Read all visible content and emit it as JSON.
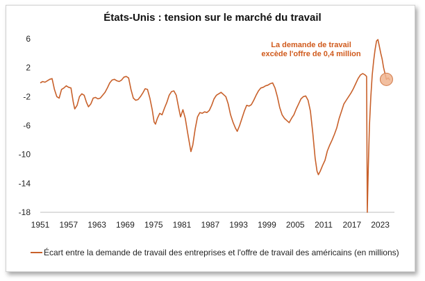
{
  "chart_data": {
    "type": "line",
    "title": "États-Unis : tension sur le marché du travail",
    "xlabel": "",
    "ylabel": "",
    "xlim": [
      1951,
      2026
    ],
    "ylim": [
      -18,
      6
    ],
    "x_ticks": [
      "1951",
      "1957",
      "1963",
      "1969",
      "1975",
      "1981",
      "1987",
      "1993",
      "1999",
      "2005",
      "2011",
      "2017",
      "2023"
    ],
    "y_ticks": [
      "6",
      "2",
      "-2",
      "-6",
      "-10",
      "-14",
      "-18"
    ],
    "grid": false,
    "color": "#c8602a",
    "annotation": [
      "La demande de travail",
      "excède l'offre de 0,4 million"
    ],
    "annotation_point": [
      2024.3,
      0.4
    ],
    "series": [
      {
        "name": "Écart entre la demande de travail des entreprises et l'offre de travail des américains (en millions)",
        "points": [
          [
            1951.0,
            -0.1
          ],
          [
            1951.5,
            0.1
          ],
          [
            1952.0,
            0.0
          ],
          [
            1952.5,
            0.2
          ],
          [
            1953.0,
            0.4
          ],
          [
            1953.5,
            0.5
          ],
          [
            1954.0,
            -1.0
          ],
          [
            1954.5,
            -2.0
          ],
          [
            1955.0,
            -2.2
          ],
          [
            1955.5,
            -1.0
          ],
          [
            1956.0,
            -0.8
          ],
          [
            1956.5,
            -0.5
          ],
          [
            1957.0,
            -0.7
          ],
          [
            1957.5,
            -0.8
          ],
          [
            1958.0,
            -2.8
          ],
          [
            1958.3,
            -3.7
          ],
          [
            1958.8,
            -3.2
          ],
          [
            1959.3,
            -2.0
          ],
          [
            1959.8,
            -1.6
          ],
          [
            1960.3,
            -1.8
          ],
          [
            1960.8,
            -2.8
          ],
          [
            1961.2,
            -3.4
          ],
          [
            1961.7,
            -3.0
          ],
          [
            1962.2,
            -2.2
          ],
          [
            1962.7,
            -2.1
          ],
          [
            1963.2,
            -2.3
          ],
          [
            1963.7,
            -2.2
          ],
          [
            1964.2,
            -1.8
          ],
          [
            1964.7,
            -1.4
          ],
          [
            1965.2,
            -0.8
          ],
          [
            1965.7,
            -0.1
          ],
          [
            1966.2,
            0.3
          ],
          [
            1966.7,
            0.4
          ],
          [
            1967.2,
            0.2
          ],
          [
            1967.7,
            0.1
          ],
          [
            1968.2,
            0.3
          ],
          [
            1968.7,
            0.7
          ],
          [
            1969.2,
            0.8
          ],
          [
            1969.7,
            0.6
          ],
          [
            1970.2,
            -1.0
          ],
          [
            1970.7,
            -2.2
          ],
          [
            1971.2,
            -2.5
          ],
          [
            1971.7,
            -2.4
          ],
          [
            1972.2,
            -2.0
          ],
          [
            1972.7,
            -1.5
          ],
          [
            1973.2,
            -0.9
          ],
          [
            1973.7,
            -1.0
          ],
          [
            1974.2,
            -2.2
          ],
          [
            1974.7,
            -3.8
          ],
          [
            1975.1,
            -5.5
          ],
          [
            1975.4,
            -5.8
          ],
          [
            1975.8,
            -5.0
          ],
          [
            1976.3,
            -4.3
          ],
          [
            1976.8,
            -4.5
          ],
          [
            1977.3,
            -3.6
          ],
          [
            1977.8,
            -2.8
          ],
          [
            1978.3,
            -1.8
          ],
          [
            1978.8,
            -1.3
          ],
          [
            1979.3,
            -1.2
          ],
          [
            1979.8,
            -1.8
          ],
          [
            1980.3,
            -3.5
          ],
          [
            1980.7,
            -4.8
          ],
          [
            1981.2,
            -3.8
          ],
          [
            1981.7,
            -5.0
          ],
          [
            1982.2,
            -7.0
          ],
          [
            1982.6,
            -8.5
          ],
          [
            1982.9,
            -9.6
          ],
          [
            1983.3,
            -8.7
          ],
          [
            1983.8,
            -6.5
          ],
          [
            1984.3,
            -4.8
          ],
          [
            1984.8,
            -4.2
          ],
          [
            1985.3,
            -4.3
          ],
          [
            1985.8,
            -4.1
          ],
          [
            1986.3,
            -4.2
          ],
          [
            1986.8,
            -3.9
          ],
          [
            1987.3,
            -3.2
          ],
          [
            1987.8,
            -2.3
          ],
          [
            1988.3,
            -1.8
          ],
          [
            1988.8,
            -1.6
          ],
          [
            1989.3,
            -1.4
          ],
          [
            1989.8,
            -1.7
          ],
          [
            1990.3,
            -2.0
          ],
          [
            1990.8,
            -3.0
          ],
          [
            1991.3,
            -4.5
          ],
          [
            1991.8,
            -5.5
          ],
          [
            1992.3,
            -6.3
          ],
          [
            1992.7,
            -6.8
          ],
          [
            1993.2,
            -6.0
          ],
          [
            1993.7,
            -5.0
          ],
          [
            1994.2,
            -4.0
          ],
          [
            1994.7,
            -3.2
          ],
          [
            1995.2,
            -3.3
          ],
          [
            1995.7,
            -3.1
          ],
          [
            1996.2,
            -2.5
          ],
          [
            1996.7,
            -1.8
          ],
          [
            1997.2,
            -1.2
          ],
          [
            1997.7,
            -0.8
          ],
          [
            1998.2,
            -0.7
          ],
          [
            1998.7,
            -0.5
          ],
          [
            1999.2,
            -0.4
          ],
          [
            1999.7,
            -0.2
          ],
          [
            2000.2,
            -0.1
          ],
          [
            2000.7,
            -0.8
          ],
          [
            2001.2,
            -2.0
          ],
          [
            2001.7,
            -3.5
          ],
          [
            2002.2,
            -4.5
          ],
          [
            2002.7,
            -5.0
          ],
          [
            2003.2,
            -5.3
          ],
          [
            2003.7,
            -5.6
          ],
          [
            2004.2,
            -5.0
          ],
          [
            2004.7,
            -4.5
          ],
          [
            2005.2,
            -3.7
          ],
          [
            2005.7,
            -3.0
          ],
          [
            2006.2,
            -2.3
          ],
          [
            2006.7,
            -2.0
          ],
          [
            2007.2,
            -1.9
          ],
          [
            2007.7,
            -2.5
          ],
          [
            2008.2,
            -4.0
          ],
          [
            2008.7,
            -7.0
          ],
          [
            2009.2,
            -10.5
          ],
          [
            2009.6,
            -12.3
          ],
          [
            2009.9,
            -12.8
          ],
          [
            2010.3,
            -12.3
          ],
          [
            2010.8,
            -11.5
          ],
          [
            2011.3,
            -10.8
          ],
          [
            2011.8,
            -9.5
          ],
          [
            2012.3,
            -8.7
          ],
          [
            2012.8,
            -8.0
          ],
          [
            2013.3,
            -7.2
          ],
          [
            2013.8,
            -6.3
          ],
          [
            2014.3,
            -5.0
          ],
          [
            2014.8,
            -4.0
          ],
          [
            2015.3,
            -3.0
          ],
          [
            2015.8,
            -2.5
          ],
          [
            2016.3,
            -2.0
          ],
          [
            2016.8,
            -1.5
          ],
          [
            2017.3,
            -0.9
          ],
          [
            2017.8,
            -0.2
          ],
          [
            2018.3,
            0.5
          ],
          [
            2018.8,
            1.0
          ],
          [
            2019.3,
            1.2
          ],
          [
            2019.8,
            1.0
          ],
          [
            2020.1,
            0.8
          ],
          [
            2020.25,
            -18.0
          ],
          [
            2020.45,
            -12.0
          ],
          [
            2020.7,
            -6.0
          ],
          [
            2021.0,
            -2.0
          ],
          [
            2021.3,
            1.0
          ],
          [
            2021.6,
            3.0
          ],
          [
            2021.9,
            4.5
          ],
          [
            2022.2,
            5.7
          ],
          [
            2022.5,
            5.9
          ],
          [
            2022.8,
            5.0
          ],
          [
            2023.1,
            4.0
          ],
          [
            2023.4,
            3.2
          ],
          [
            2023.7,
            2.0
          ],
          [
            2024.0,
            1.2
          ],
          [
            2024.3,
            0.4
          ],
          [
            2024.7,
            0.6
          ],
          [
            2025.0,
            0.3
          ]
        ]
      }
    ]
  }
}
